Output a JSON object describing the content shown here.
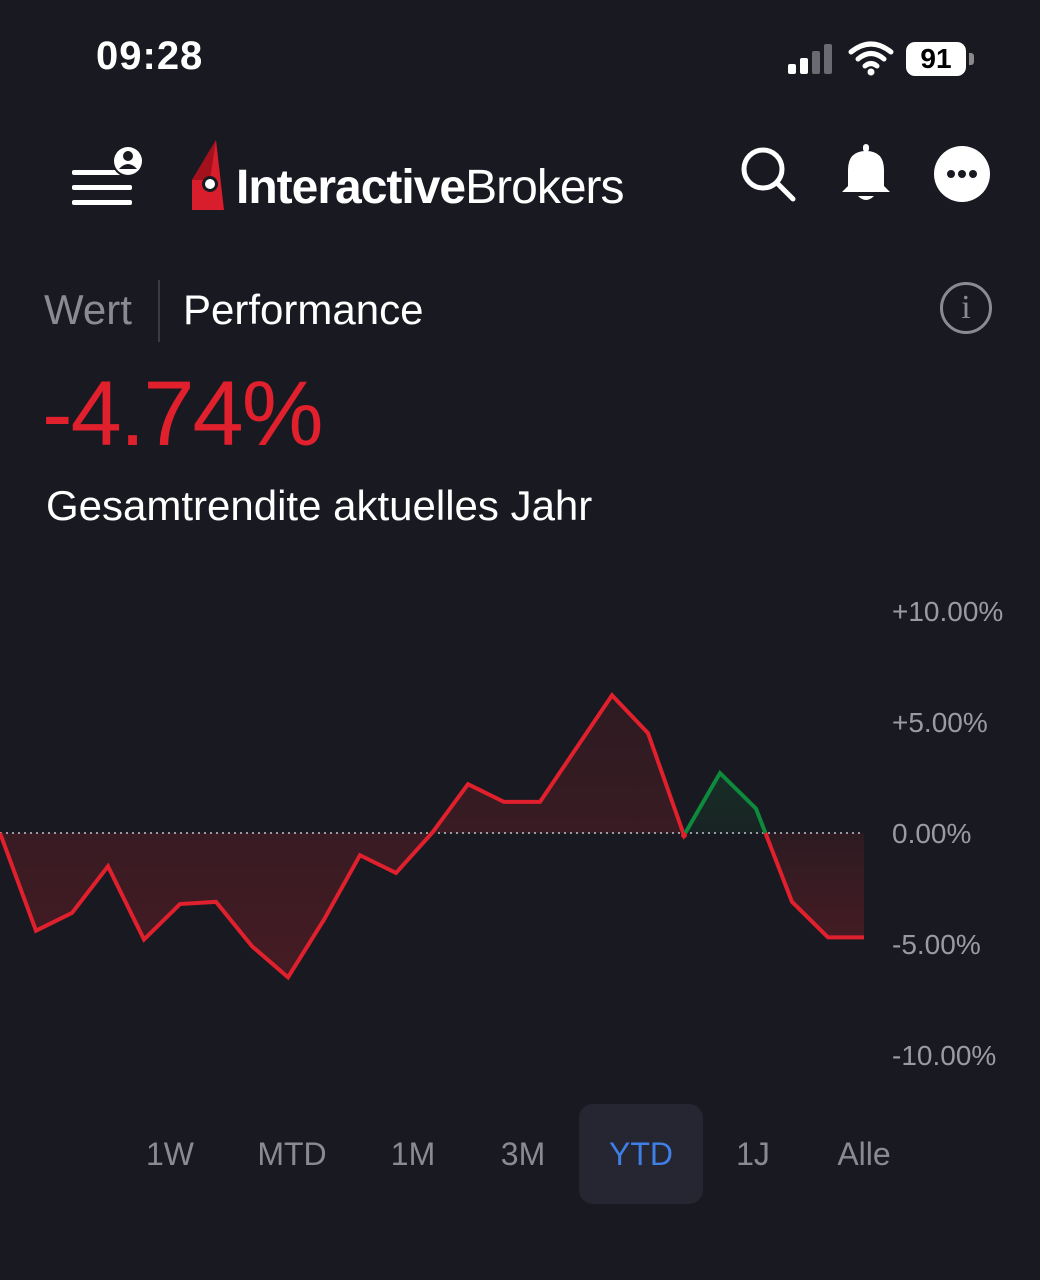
{
  "status_bar": {
    "time": "09:28",
    "battery": "91"
  },
  "header": {
    "logo_bold": "Interactive",
    "logo_light": "Brokers"
  },
  "tabs": {
    "wert": "Wert",
    "performance": "Performance",
    "info": "i"
  },
  "summary": {
    "value": "-4.74%",
    "label": "Gesamtrendite aktuelles Jahr"
  },
  "colors": {
    "positive": "#0e8a3c",
    "negative": "#e0202c",
    "active_range": "#3f7fe6",
    "background": "#191a21"
  },
  "chart_data": {
    "type": "line",
    "y_ticks": [
      "+10.00%",
      "+5.00%",
      "0.00%",
      "-5.00%",
      "-10.00%"
    ],
    "ylim": [
      -10,
      10
    ],
    "baseline": 0,
    "values": [
      0.0,
      -4.4,
      -3.6,
      -1.5,
      -4.8,
      -3.2,
      -3.1,
      -5.1,
      -6.5,
      -3.9,
      -1.0,
      -1.8,
      0.0,
      2.2,
      1.4,
      1.4,
      3.8,
      6.2,
      4.5,
      -0.1,
      2.7,
      1.1,
      -3.1,
      -4.7,
      -4.7
    ]
  },
  "ranges": [
    {
      "label": "1W",
      "active": false
    },
    {
      "label": "MTD",
      "active": false
    },
    {
      "label": "1M",
      "active": false
    },
    {
      "label": "3M",
      "active": false
    },
    {
      "label": "YTD",
      "active": true
    },
    {
      "label": "1J",
      "active": false
    },
    {
      "label": "Alle",
      "active": false
    }
  ]
}
